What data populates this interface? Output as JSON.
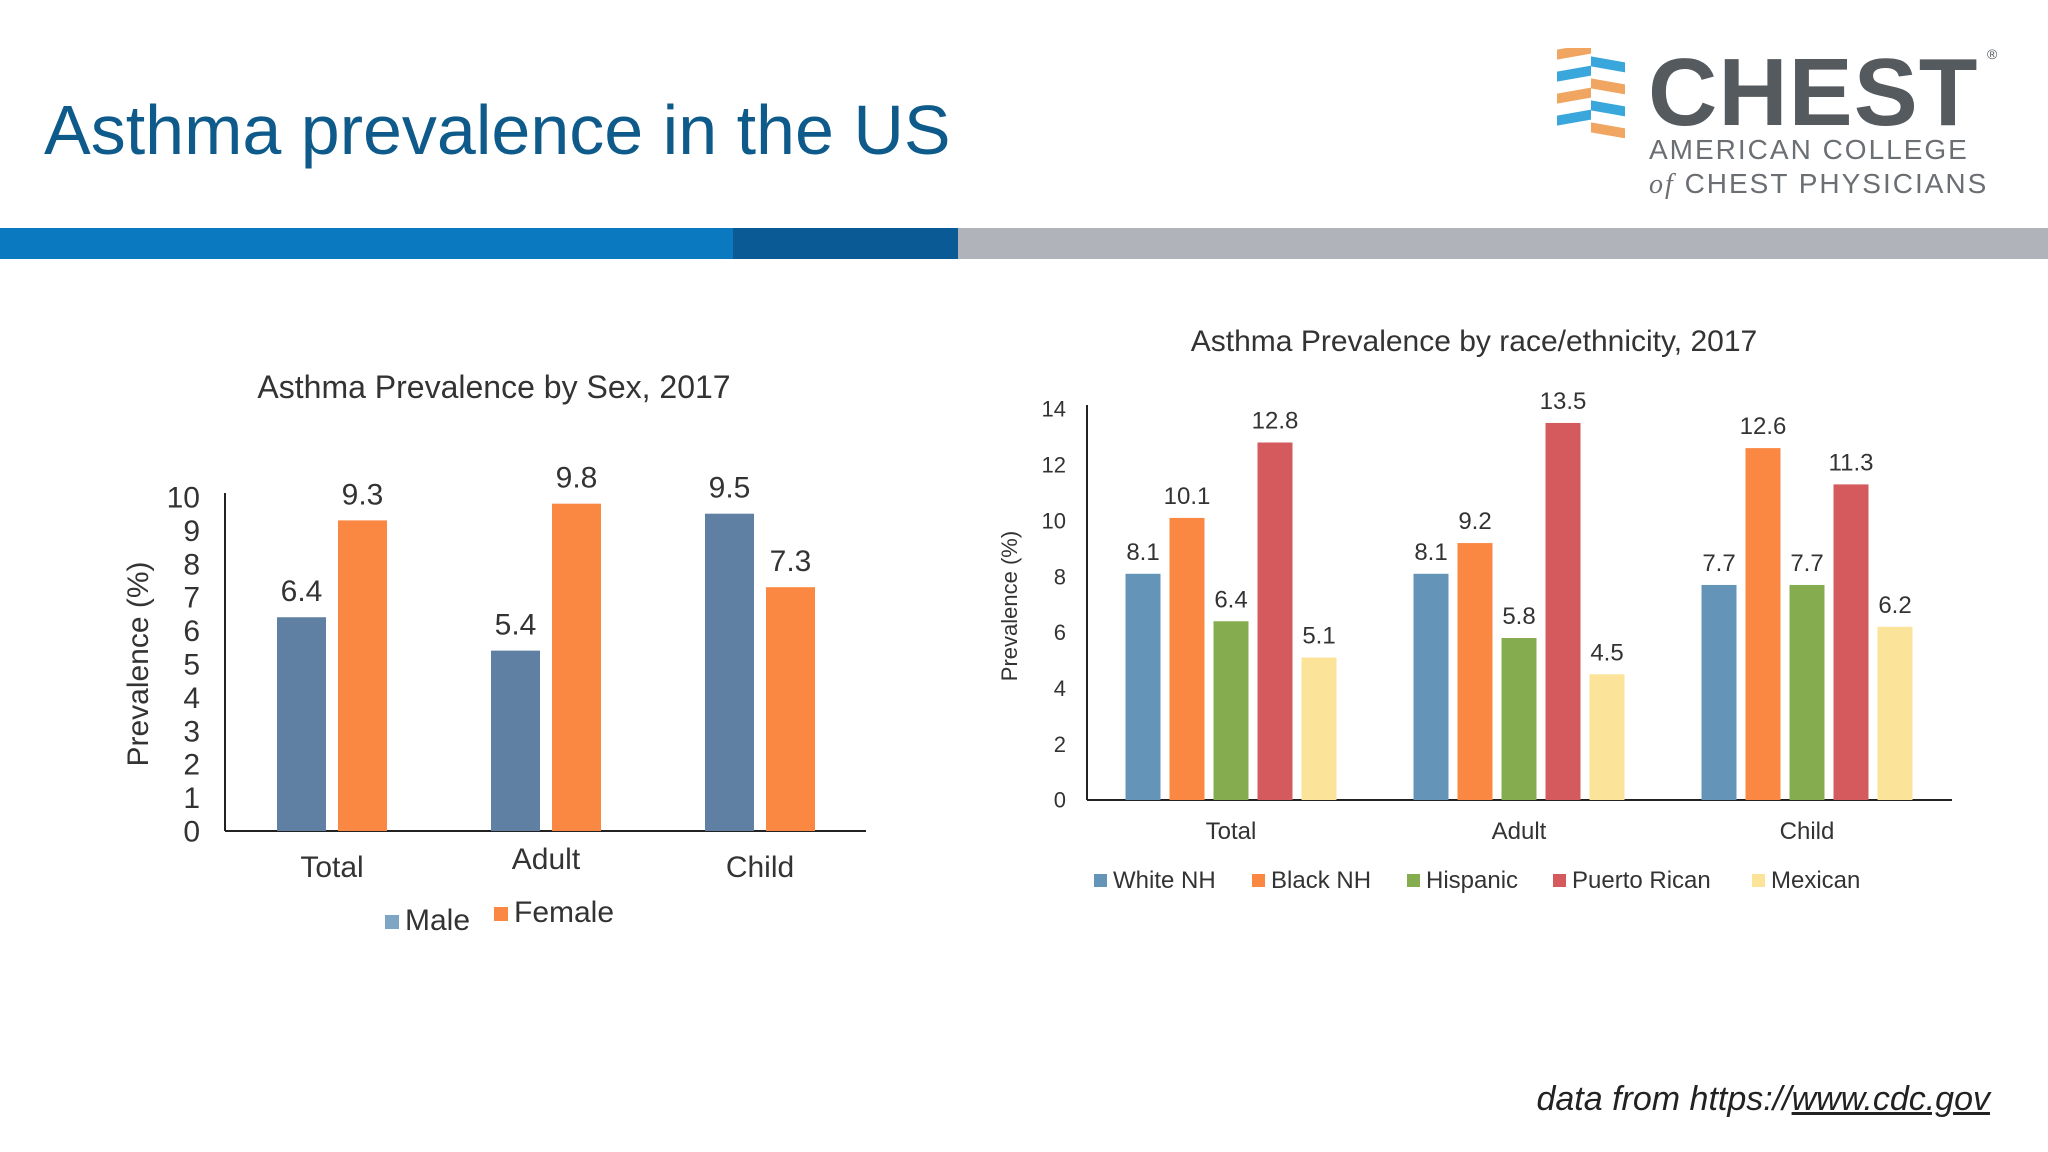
{
  "slide": {
    "title": "Asthma prevalence in the US",
    "source_prefix": "data from https://",
    "source_link": "www.cdc.gov"
  },
  "logo": {
    "name": "CHEST",
    "mark": "®",
    "line1": "AMERICAN COLLEGE",
    "line2_of": "of",
    "line2_rest": "CHEST PHYSICIANS"
  },
  "chart_data": [
    {
      "type": "bar",
      "title": "Asthma Prevalence by Sex, 2017",
      "xlabel": "",
      "ylabel": "Prevalence (%)",
      "ylim": [
        0,
        10
      ],
      "yticks": [
        0,
        1,
        2,
        3,
        4,
        5,
        6,
        7,
        8,
        9,
        10
      ],
      "categories": [
        "Total",
        "Adult",
        "Child"
      ],
      "series": [
        {
          "name": "Male",
          "values": [
            6.4,
            5.4,
            9.5
          ],
          "color": "#5f7fa3",
          "legend_color": "#7ea6c4"
        },
        {
          "name": "Female",
          "values": [
            9.3,
            9.8,
            7.3
          ],
          "color": "#fb8842",
          "legend_color": "#fb8842"
        }
      ],
      "grid": false,
      "legend": "bottom"
    },
    {
      "type": "bar",
      "title": "Asthma Prevalence by race/ethnicity, 2017",
      "xlabel": "",
      "ylabel": "Prevalence (%)",
      "ylim": [
        0,
        14
      ],
      "yticks": [
        0,
        2,
        4,
        6,
        8,
        10,
        12,
        14
      ],
      "categories": [
        "Total",
        "Adult",
        "Child"
      ],
      "series": [
        {
          "name": "White NH",
          "values": [
            8.1,
            8.1,
            7.7
          ],
          "color": "#6495b8"
        },
        {
          "name": "Black NH",
          "values": [
            10.1,
            9.2,
            12.6
          ],
          "color": "#fb8842"
        },
        {
          "name": "Hispanic",
          "values": [
            6.4,
            5.8,
            7.7
          ],
          "color": "#85ac4f"
        },
        {
          "name": "Puerto Rican",
          "values": [
            12.8,
            13.5,
            11.3
          ],
          "color": "#d45a5e"
        },
        {
          "name": "Mexican",
          "values": [
            5.1,
            4.5,
            6.2
          ],
          "color": "#fbe39a"
        }
      ],
      "grid": false,
      "legend": "bottom"
    }
  ]
}
